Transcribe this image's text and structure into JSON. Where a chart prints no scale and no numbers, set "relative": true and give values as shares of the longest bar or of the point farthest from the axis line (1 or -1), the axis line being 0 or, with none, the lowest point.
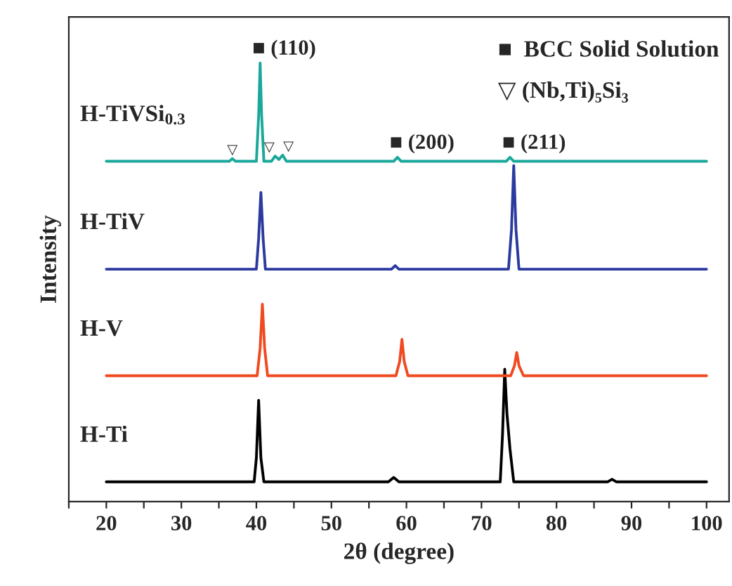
{
  "chart_data": {
    "type": "line",
    "relative": true,
    "xlabel": "2θ (degree)",
    "ylabel": "Intensity",
    "xlim": [
      15,
      103
    ],
    "xticks": [
      {
        "value": 15,
        "label": null
      },
      20,
      {
        "value": 25,
        "label": null
      },
      30,
      {
        "value": 35,
        "label": null
      },
      40,
      {
        "value": 45,
        "label": null
      },
      50,
      {
        "value": 55,
        "label": null
      },
      60,
      {
        "value": 65,
        "label": null
      },
      70,
      {
        "value": 75,
        "label": null
      },
      80,
      {
        "value": 85,
        "label": null
      },
      90,
      {
        "value": 95,
        "label": null
      },
      100
    ],
    "grid": false,
    "legend": false,
    "marker": "none",
    "line_style": "solid",
    "series": [
      {
        "name": "H-Ti",
        "color": "#000000",
        "x": [
          20,
          39.7,
          40.0,
          40.3,
          40.6,
          41.0,
          57.6,
          58.3,
          59.0,
          72.5,
          72.8,
          73.1,
          73.4,
          73.8,
          74.3,
          86.8,
          87.4,
          88.0,
          100
        ],
        "values": [
          0.045,
          0.045,
          0.1,
          0.231,
          0.1,
          0.045,
          0.045,
          0.055,
          0.045,
          0.045,
          0.15,
          0.302,
          0.2,
          0.12,
          0.045,
          0.045,
          0.051,
          0.045,
          0.045
        ]
      },
      {
        "name": "H-V",
        "color": "#f04a20",
        "x": [
          20,
          40.1,
          40.5,
          40.8,
          41.1,
          41.5,
          58.6,
          59.1,
          59.4,
          59.7,
          60.2,
          73.9,
          74.4,
          74.7,
          75.0,
          75.6,
          100
        ],
        "values": [
          0.287,
          0.287,
          0.35,
          0.45,
          0.35,
          0.287,
          0.287,
          0.32,
          0.37,
          0.32,
          0.287,
          0.287,
          0.31,
          0.34,
          0.31,
          0.287,
          0.287
        ]
      },
      {
        "name": "H-TiV",
        "color": "#2b3a9e",
        "x": [
          20,
          40.0,
          40.3,
          40.6,
          40.9,
          41.2,
          58.0,
          58.5,
          59.0,
          73.6,
          74.0,
          74.3,
          74.6,
          75.0,
          100
        ],
        "values": [
          0.53,
          0.53,
          0.6,
          0.705,
          0.6,
          0.53,
          0.53,
          0.538,
          0.53,
          0.53,
          0.62,
          0.766,
          0.62,
          0.53,
          0.53
        ]
      },
      {
        "name": "H-TiVSi$_{0.3}$",
        "color": "#1aa89a",
        "x": [
          20,
          36.4,
          36.8,
          37.2,
          40.0,
          40.3,
          40.5,
          40.7,
          41.0,
          42.0,
          42.5,
          43.0,
          43.5,
          44.0,
          58.3,
          58.8,
          59.3,
          73.3,
          73.8,
          74.3,
          100
        ],
        "values": [
          0.776,
          0.776,
          0.782,
          0.776,
          0.776,
          0.88,
          1.0,
          0.88,
          0.776,
          0.776,
          0.788,
          0.78,
          0.79,
          0.776,
          0.776,
          0.785,
          0.776,
          0.776,
          0.785,
          0.776,
          0.776
        ]
      }
    ],
    "annotations": [
      {
        "text": "■ (110)",
        "x": 40.5,
        "y": 1.0
      },
      {
        "text": "■ (200)",
        "x": 58.8,
        "y": 0.785
      },
      {
        "text": "■ (211)",
        "x": 73.8,
        "y": 0.785
      },
      {
        "text": "▽",
        "x": 36.8,
        "y": 0.782
      },
      {
        "text": "▽",
        "x": 42.5,
        "y": 0.788
      },
      {
        "text": "▽",
        "x": 43.5,
        "y": 0.79
      },
      "■  BCC Solid Solution",
      "▽ (Nb,Ti)₅Si₃"
    ]
  }
}
